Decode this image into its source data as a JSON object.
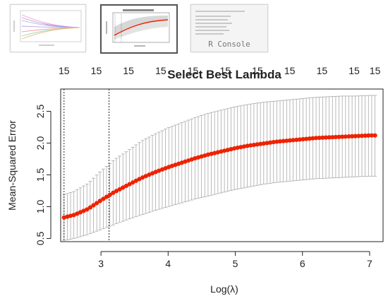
{
  "thumbnails": [
    {
      "name": "coefficient-paths-plot",
      "label": "",
      "active": false
    },
    {
      "name": "cross-validation-plot",
      "label": "",
      "active": true
    },
    {
      "name": "r-console",
      "label": "R Console",
      "active": false
    }
  ],
  "chart_data": {
    "type": "scatter",
    "title": "Select Best Lambda",
    "xlabel": "Log(λ)",
    "ylabel": "Mean-Squared Error",
    "xlim": [
      2.4,
      7.2
    ],
    "ylim": [
      0.45,
      2.85
    ],
    "x_ticks": [
      "3",
      "4",
      "5",
      "6",
      "7"
    ],
    "x_tick_values": [
      3,
      4,
      5,
      6,
      7
    ],
    "y_ticks": [
      "0.5",
      "1.0",
      "1.5",
      "2.0",
      "2.5"
    ],
    "y_tick_values": [
      0.5,
      1.0,
      1.5,
      2.0,
      2.5
    ],
    "top_axis_labels": [
      "15",
      "15",
      "15",
      "15",
      "15",
      "15",
      "15",
      "15",
      "15",
      "15",
      "15"
    ],
    "top_axis_values": [
      2.45,
      2.93,
      3.41,
      3.89,
      4.37,
      4.85,
      5.33,
      5.81,
      6.29,
      6.77,
      7.08
    ],
    "vlines": [
      2.45,
      3.12
    ],
    "grid": false,
    "series": [
      {
        "points": [
          {
            "x": 2.45,
            "y": 0.83,
            "lo": 0.47,
            "hi": 1.19
          },
          {
            "x": 2.6,
            "y": 0.87,
            "lo": 0.5,
            "hi": 1.24
          },
          {
            "x": 2.8,
            "y": 0.96,
            "lo": 0.56,
            "hi": 1.36
          },
          {
            "x": 3.0,
            "y": 1.1,
            "lo": 0.64,
            "hi": 1.56
          },
          {
            "x": 3.2,
            "y": 1.23,
            "lo": 0.72,
            "hi": 1.74
          },
          {
            "x": 3.4,
            "y": 1.34,
            "lo": 0.8,
            "hi": 1.88
          },
          {
            "x": 3.6,
            "y": 1.45,
            "lo": 0.87,
            "hi": 2.03
          },
          {
            "x": 3.8,
            "y": 1.54,
            "lo": 0.94,
            "hi": 2.14
          },
          {
            "x": 4.0,
            "y": 1.62,
            "lo": 1.0,
            "hi": 2.24
          },
          {
            "x": 4.2,
            "y": 1.69,
            "lo": 1.06,
            "hi": 2.32
          },
          {
            "x": 4.4,
            "y": 1.76,
            "lo": 1.12,
            "hi": 2.4
          },
          {
            "x": 4.6,
            "y": 1.82,
            "lo": 1.17,
            "hi": 2.47
          },
          {
            "x": 4.8,
            "y": 1.87,
            "lo": 1.22,
            "hi": 2.52
          },
          {
            "x": 5.0,
            "y": 1.92,
            "lo": 1.27,
            "hi": 2.57
          },
          {
            "x": 5.2,
            "y": 1.96,
            "lo": 1.31,
            "hi": 2.61
          },
          {
            "x": 5.4,
            "y": 1.99,
            "lo": 1.35,
            "hi": 2.64
          },
          {
            "x": 5.6,
            "y": 2.02,
            "lo": 1.38,
            "hi": 2.66
          },
          {
            "x": 5.8,
            "y": 2.04,
            "lo": 1.4,
            "hi": 2.68
          },
          {
            "x": 6.0,
            "y": 2.06,
            "lo": 1.42,
            "hi": 2.7
          },
          {
            "x": 6.2,
            "y": 2.08,
            "lo": 1.44,
            "hi": 2.72
          },
          {
            "x": 6.4,
            "y": 2.09,
            "lo": 1.45,
            "hi": 2.73
          },
          {
            "x": 6.6,
            "y": 2.1,
            "lo": 1.46,
            "hi": 2.74
          },
          {
            "x": 6.8,
            "y": 2.11,
            "lo": 1.47,
            "hi": 2.74
          },
          {
            "x": 7.0,
            "y": 2.12,
            "lo": 1.48,
            "hi": 2.75
          },
          {
            "x": 7.08,
            "y": 2.12,
            "lo": 1.48,
            "hi": 2.75
          }
        ]
      }
    ],
    "colors": {
      "points": "#ee2200",
      "error_bars": "#a9a9a9",
      "axis": "#222222",
      "reference_lines": "#222222"
    }
  }
}
